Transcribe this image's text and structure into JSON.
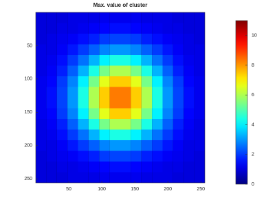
{
  "chart_data": {
    "type": "heatmap",
    "title": "Max. value of cluster",
    "colormap": "jet",
    "x": [
      8,
      24,
      40,
      56,
      72,
      88,
      104,
      120,
      136,
      152,
      168,
      184,
      200,
      216,
      232,
      248
    ],
    "y": [
      8,
      24,
      40,
      56,
      72,
      88,
      104,
      120,
      136,
      152,
      168,
      184,
      200,
      216,
      232,
      248
    ],
    "z": [
      [
        1.0,
        1.0,
        1.0,
        1.1,
        1.1,
        1.1,
        1.2,
        1.2,
        1.2,
        1.2,
        1.1,
        1.1,
        1.1,
        1.0,
        1.0,
        1.0
      ],
      [
        1.0,
        1.0,
        1.1,
        1.1,
        1.2,
        1.3,
        1.4,
        1.5,
        1.5,
        1.4,
        1.3,
        1.2,
        1.1,
        1.1,
        1.0,
        1.0
      ],
      [
        1.0,
        1.1,
        1.2,
        1.3,
        1.5,
        1.7,
        2.0,
        2.1,
        2.1,
        2.0,
        1.7,
        1.5,
        1.3,
        1.2,
        1.1,
        1.0
      ],
      [
        1.1,
        1.1,
        1.3,
        1.6,
        2.0,
        2.4,
        2.8,
        3.0,
        3.0,
        2.8,
        2.4,
        2.0,
        1.6,
        1.3,
        1.1,
        1.1
      ],
      [
        1.1,
        1.2,
        1.5,
        2.0,
        2.6,
        3.3,
        4.0,
        4.4,
        4.4,
        4.0,
        3.3,
        2.6,
        2.0,
        1.5,
        1.2,
        1.1
      ],
      [
        1.1,
        1.3,
        1.7,
        2.4,
        3.3,
        4.4,
        5.4,
        6.0,
        6.0,
        5.4,
        4.4,
        3.3,
        2.4,
        1.7,
        1.3,
        1.1
      ],
      [
        1.2,
        1.4,
        2.0,
        2.8,
        4.0,
        5.4,
        6.6,
        7.4,
        7.4,
        6.6,
        5.4,
        4.0,
        2.8,
        2.0,
        1.4,
        1.2
      ],
      [
        1.2,
        1.5,
        2.1,
        3.0,
        4.4,
        6.0,
        7.4,
        8.3,
        8.3,
        7.4,
        6.0,
        4.4,
        3.0,
        2.1,
        1.5,
        1.2
      ],
      [
        1.2,
        1.5,
        2.1,
        3.0,
        4.4,
        6.0,
        7.4,
        8.3,
        8.3,
        7.4,
        6.0,
        4.4,
        3.0,
        2.1,
        1.5,
        1.2
      ],
      [
        1.2,
        1.4,
        2.0,
        2.8,
        4.0,
        5.4,
        6.6,
        7.4,
        7.4,
        6.6,
        5.4,
        4.0,
        2.8,
        2.0,
        1.4,
        1.2
      ],
      [
        1.1,
        1.3,
        1.7,
        2.4,
        3.3,
        4.4,
        5.4,
        6.0,
        6.0,
        5.4,
        4.4,
        3.3,
        2.4,
        1.7,
        1.3,
        1.1
      ],
      [
        1.1,
        1.2,
        1.5,
        2.0,
        2.6,
        3.3,
        4.0,
        4.4,
        4.4,
        4.0,
        3.3,
        2.6,
        2.0,
        1.5,
        1.2,
        1.1
      ],
      [
        1.1,
        1.1,
        1.3,
        1.6,
        2.0,
        2.4,
        2.8,
        3.0,
        3.0,
        2.8,
        2.4,
        2.0,
        1.6,
        1.3,
        1.1,
        1.1
      ],
      [
        1.0,
        1.1,
        1.2,
        1.3,
        1.5,
        1.7,
        2.0,
        2.1,
        2.1,
        2.0,
        1.7,
        1.5,
        1.3,
        1.2,
        1.1,
        1.0
      ],
      [
        1.0,
        1.0,
        1.1,
        1.1,
        1.2,
        1.3,
        1.4,
        1.5,
        1.5,
        1.4,
        1.3,
        1.2,
        1.1,
        1.1,
        1.0,
        1.0
      ],
      [
        1.0,
        1.0,
        1.0,
        1.1,
        1.1,
        1.1,
        1.2,
        1.2,
        1.2,
        1.2,
        1.1,
        1.1,
        1.1,
        1.0,
        1.0,
        1.0
      ]
    ],
    "xlim": [
      0,
      256
    ],
    "ylim": [
      0,
      256
    ],
    "y_reversed": true,
    "xticks": [
      50,
      100,
      150,
      200,
      250
    ],
    "yticks": [
      50,
      100,
      150,
      200,
      250
    ],
    "zlim": [
      0,
      11
    ],
    "zticks": [
      0,
      2,
      4,
      6,
      8,
      10
    ]
  }
}
